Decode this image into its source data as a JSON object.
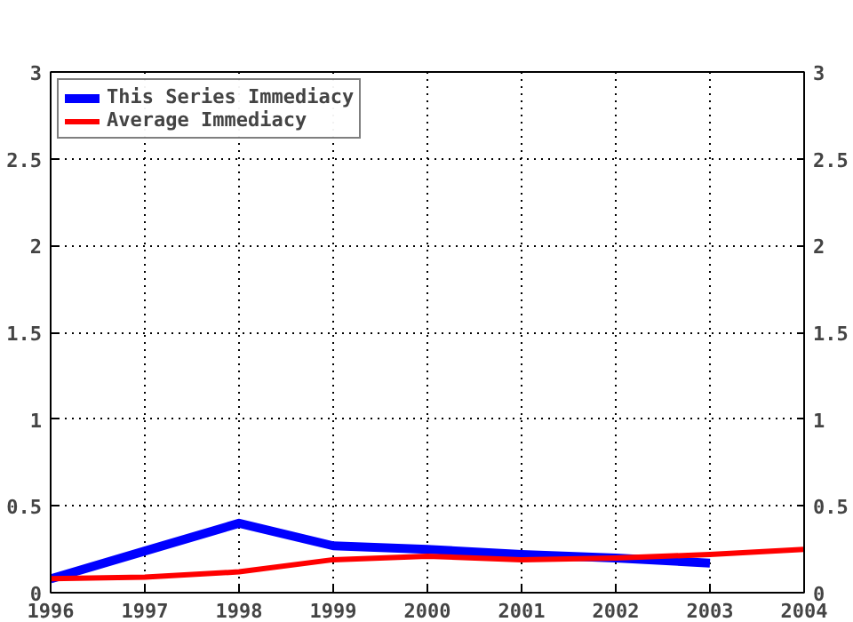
{
  "chart_data": {
    "type": "line",
    "x": [
      1996,
      1997,
      1998,
      1999,
      2000,
      2001,
      2002,
      2003,
      2004
    ],
    "series": [
      {
        "name": "This Series Immediacy",
        "color": "#0000ff",
        "values": [
          0.08,
          0.24,
          0.4,
          0.27,
          0.25,
          0.22,
          0.2,
          0.17,
          null
        ]
      },
      {
        "name": "Average Immediacy",
        "color": "#ff0000",
        "values": [
          0.08,
          0.09,
          0.12,
          0.19,
          0.21,
          0.19,
          0.2,
          0.22,
          0.25
        ]
      }
    ],
    "xlim": [
      1996,
      2004
    ],
    "xticks": [
      1996,
      1997,
      1998,
      1999,
      2000,
      2001,
      2002,
      2003,
      2004
    ],
    "ylim": [
      0,
      3
    ],
    "yticks": [
      0,
      0.5,
      1,
      1.5,
      2,
      2.5,
      3
    ],
    "y2lim": [
      0,
      3
    ],
    "y2ticks": [
      0,
      0.5,
      1,
      1.5,
      2,
      2.5,
      3
    ],
    "grid": true,
    "legend": "top left",
    "line_style": "solid",
    "marker": "none"
  }
}
